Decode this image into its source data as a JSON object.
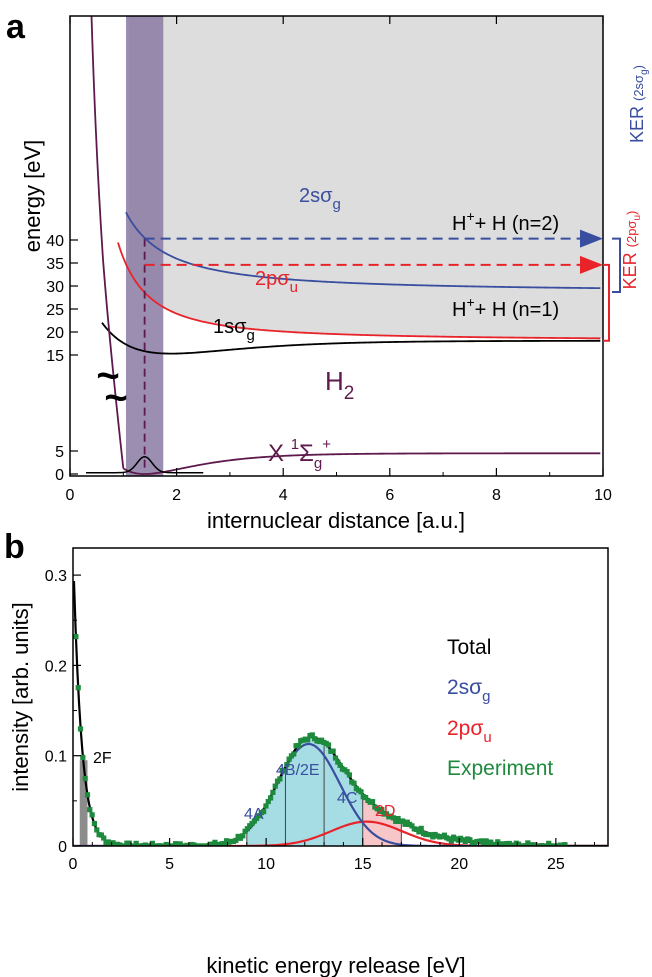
{
  "colors": {
    "black": "#000000",
    "blue": "#3a4ea0",
    "red": "#e8232a",
    "purple": "#5e1a4c",
    "green": "#1e8a3e",
    "gray_fill": "#dddddd",
    "band_fill": "#8a7aa3",
    "cyan_fill": "#a6dde4",
    "pink_fill": "#f6c6c8",
    "bar_fill": "#8c8c8c"
  },
  "chart_data": [
    {
      "panel_label": "a",
      "type": "line",
      "xlabel": "internuclear distance [a.u.]",
      "ylabel": "energy [eV]",
      "xlim": [
        0,
        10
      ],
      "x_ticks": [
        "0",
        "2",
        "4",
        "6",
        "8",
        "10"
      ],
      "y_ticks_upper": [
        "15",
        "20",
        "25",
        "30",
        "35",
        "40"
      ],
      "y_ticks_lower": [
        "0",
        "5"
      ],
      "axis_break": "~",
      "curves": {
        "s1": {
          "label": "1s",
          "sub": "g",
          "min_R": 1.9,
          "min_E": 15.3,
          "asymptote": 18.1
        },
        "p2": {
          "label": "2p",
          "sub": "u",
          "asymptote": 18.1
        },
        "s2": {
          "label": "2s",
          "sub": "g",
          "asymptote": 28.7
        },
        "x1": {
          "label": "X",
          "sup1": "1",
          "sigma": "Σ",
          "sub": "g",
          "sup2": "+",
          "min_R": 1.4,
          "min_E": 0.0,
          "asymptote": 4.5
        }
      },
      "molecule": {
        "text": "H",
        "sub": "2"
      },
      "limit_n2": {
        "pre": "H",
        "plus": "+",
        "rest": "+ H (n=2)"
      },
      "limit_n1": {
        "pre": "H",
        "plus": "+",
        "rest": "+ H (n=1)"
      },
      "franck_condon_band": [
        1.05,
        1.75
      ],
      "transition_R": 1.4,
      "arrow_energies": {
        "s2": 40.3,
        "p2": 34.6
      },
      "ker_labels": [
        {
          "main": "KER",
          "paren": "(2sσ",
          "sub": "g",
          "close": ")"
        },
        {
          "main": "KER",
          "paren": "(2pσ",
          "sub": "u",
          "close": ")"
        }
      ]
    },
    {
      "panel_label": "b",
      "type": "line",
      "xlabel": "kinetic energy  release [eV]",
      "ylabel": "intensity [arb. units]",
      "xlim": [
        0,
        27.7
      ],
      "ylim": [
        0,
        0.33
      ],
      "x_ticks": [
        "0",
        "5",
        "10",
        "15",
        "20",
        "25"
      ],
      "y_ticks": [
        "0",
        "0.1",
        "0.2",
        "0.3"
      ],
      "legend": [
        {
          "text": "Total",
          "sub": "",
          "color": "#000000"
        },
        {
          "text": "2sσ",
          "sub": "g",
          "color": "#3a4ea0"
        },
        {
          "text": "2pσ",
          "sub": "u",
          "color": "#e8232a"
        },
        {
          "text": "Experiment",
          "sub": "",
          "color": "#1e8a3e"
        }
      ],
      "series_params": {
        "s2": {
          "center": 12.2,
          "width": 2.3,
          "peak": 0.113
        },
        "p2": {
          "center": 15.2,
          "width": 2.6,
          "peak": 0.027
        },
        "decay": {
          "amplitude": 0.33,
          "rate": 2.35
        }
      },
      "region_labels": [
        {
          "text": "2F",
          "x": 0.5,
          "color": "#000000"
        },
        {
          "text": "4A",
          "x": 9.0,
          "color": "#3a4ea0"
        },
        {
          "text": "4B/2E",
          "x": 12.0,
          "color": "#3a4ea0"
        },
        {
          "text": "4C",
          "x": 13.0,
          "color": "#3a4ea0"
        },
        {
          "text": "2D",
          "x": 16.0,
          "color": "#e8232a"
        }
      ],
      "cyan_region": [
        9.0,
        15.0
      ],
      "pink_region": [
        15.0,
        17.0
      ],
      "divider_lines": [
        11.0,
        13.0
      ],
      "gray_bar": [
        0.35,
        0.75
      ]
    }
  ]
}
